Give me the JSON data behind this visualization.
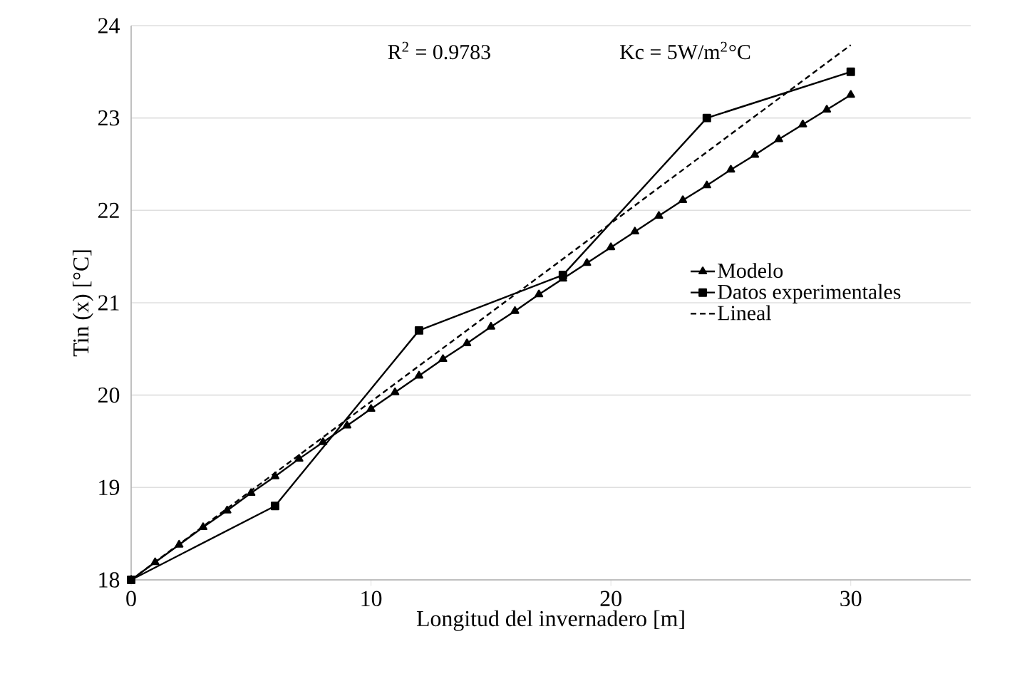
{
  "chart_data": {
    "type": "line",
    "xlabel": "Longitud del invernadero [m]",
    "ylabel": "Tin (x)  [°C]",
    "xlim": [
      0,
      35
    ],
    "xticks": [
      0,
      10,
      20,
      30
    ],
    "ylim": [
      18,
      24
    ],
    "yticks": [
      18,
      19,
      20,
      21,
      22,
      23,
      24
    ],
    "grid": "y",
    "legend": "right",
    "annotations": [
      "R$^{2}$ = 0.9783",
      "Kc = 5W/m$^{2}$°C"
    ],
    "series": [
      {
        "name": "Modelo",
        "color": "#000000",
        "marker": "triangle",
        "line_style": "solid",
        "x": [
          0,
          1,
          2,
          3,
          4,
          5,
          6,
          7,
          8,
          9,
          10,
          11,
          12,
          13,
          14,
          15,
          16,
          17,
          18,
          19,
          20,
          21,
          22,
          23,
          24,
          25,
          26,
          27,
          28,
          29,
          30
        ],
        "values": [
          18.0,
          18.19,
          18.38,
          18.57,
          18.75,
          18.94,
          19.12,
          19.31,
          19.49,
          19.67,
          19.85,
          20.03,
          20.21,
          20.39,
          20.56,
          20.74,
          20.91,
          21.09,
          21.26,
          21.43,
          21.6,
          21.77,
          21.94,
          22.11,
          22.27,
          22.44,
          22.6,
          22.77,
          22.93,
          23.09,
          23.25
        ]
      },
      {
        "name": "Datos experimentales",
        "color": "#000000",
        "marker": "square",
        "line_style": "solid",
        "x": [
          0,
          6,
          12,
          18,
          24,
          30
        ],
        "values": [
          18.0,
          18.8,
          20.7,
          21.3,
          23.0,
          23.5
        ]
      },
      {
        "name": "Lineal",
        "color": "#000000",
        "marker": "none",
        "line_style": "dashed",
        "x": [
          0,
          30
        ],
        "values": [
          18.0,
          23.79
        ]
      }
    ]
  }
}
